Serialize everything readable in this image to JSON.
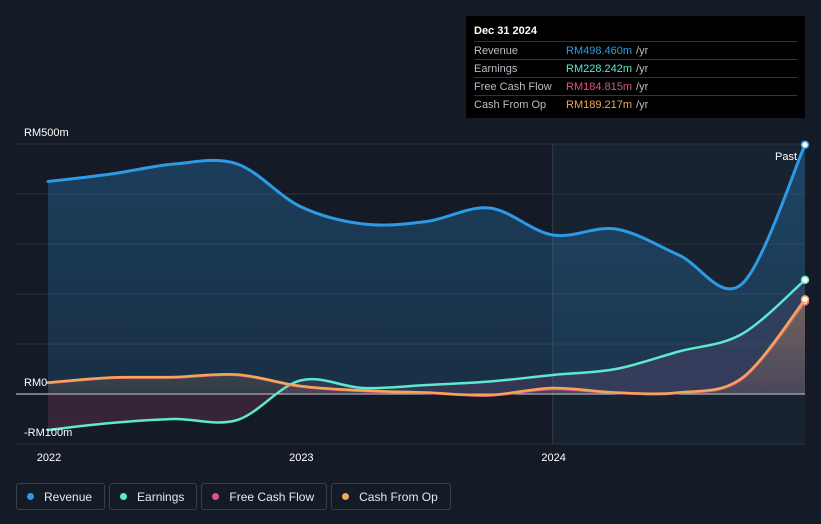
{
  "tooltip": {
    "date": "Dec 31 2024",
    "rows": [
      {
        "name": "Revenue",
        "value": "RM498.460m",
        "unit": "/yr",
        "color": "#2d9ae6"
      },
      {
        "name": "Earnings",
        "value": "RM228.242m",
        "unit": "/yr",
        "color": "#5ee8cf"
      },
      {
        "name": "Free Cash Flow",
        "value": "RM184.815m",
        "unit": "/yr",
        "color": "#e0508f"
      },
      {
        "name": "Cash From Op",
        "value": "RM189.217m",
        "unit": "/yr",
        "color": "#f1a65a"
      }
    ]
  },
  "legend": [
    {
      "label": "Revenue",
      "color": "#2d9ae6"
    },
    {
      "label": "Earnings",
      "color": "#5ee8cf"
    },
    {
      "label": "Free Cash Flow",
      "color": "#e0508f"
    },
    {
      "label": "Cash From Op",
      "color": "#f1a65a"
    }
  ],
  "chart_data": {
    "type": "area",
    "y_tick_labels": [
      {
        "value": 500,
        "label": "RM500m"
      },
      {
        "value": 0,
        "label": "RM0"
      },
      {
        "value": -100,
        "label": "-RM100m"
      }
    ],
    "x_tick_labels": [
      {
        "value": 2022.0,
        "label": "2022"
      },
      {
        "value": 2023.0,
        "label": "2023"
      },
      {
        "value": 2024.0,
        "label": "2024"
      }
    ],
    "ylim": [
      -100,
      500
    ],
    "xlim": [
      2021.87,
      2025.0
    ],
    "past_label": "Past",
    "past_start": 2024.0,
    "series": [
      {
        "name": "Revenue",
        "color": "#2d9ae6",
        "points": [
          [
            2022.0,
            425
          ],
          [
            2022.25,
            440
          ],
          [
            2022.5,
            460
          ],
          [
            2022.75,
            460
          ],
          [
            2023.0,
            375
          ],
          [
            2023.25,
            340
          ],
          [
            2023.5,
            345
          ],
          [
            2023.75,
            372
          ],
          [
            2024.0,
            318
          ],
          [
            2024.25,
            330
          ],
          [
            2024.5,
            278
          ],
          [
            2024.75,
            220
          ],
          [
            2025.0,
            498.46
          ]
        ]
      },
      {
        "name": "Earnings",
        "color": "#5ee8cf",
        "points": [
          [
            2022.0,
            -72
          ],
          [
            2022.25,
            -58
          ],
          [
            2022.5,
            -50
          ],
          [
            2022.75,
            -52
          ],
          [
            2023.0,
            27
          ],
          [
            2023.25,
            12
          ],
          [
            2023.5,
            18
          ],
          [
            2023.75,
            25
          ],
          [
            2024.0,
            38
          ],
          [
            2024.25,
            50
          ],
          [
            2024.5,
            85
          ],
          [
            2024.75,
            120
          ],
          [
            2025.0,
            228.242
          ]
        ]
      },
      {
        "name": "Free Cash Flow",
        "color": "#e0508f",
        "points": [
          [
            2022.0,
            22
          ],
          [
            2022.25,
            32
          ],
          [
            2022.5,
            33
          ],
          [
            2022.75,
            38
          ],
          [
            2023.0,
            15
          ],
          [
            2023.25,
            6
          ],
          [
            2023.5,
            2
          ],
          [
            2023.75,
            -3
          ],
          [
            2024.0,
            10
          ],
          [
            2024.25,
            2
          ],
          [
            2024.5,
            2
          ],
          [
            2024.75,
            30
          ],
          [
            2025.0,
            184.815
          ]
        ]
      },
      {
        "name": "Cash From Op",
        "color": "#f1a65a",
        "points": [
          [
            2022.0,
            23
          ],
          [
            2022.25,
            33
          ],
          [
            2022.5,
            34
          ],
          [
            2022.75,
            39
          ],
          [
            2023.0,
            16
          ],
          [
            2023.25,
            7
          ],
          [
            2023.5,
            3
          ],
          [
            2023.75,
            -2
          ],
          [
            2024.0,
            12
          ],
          [
            2024.25,
            3
          ],
          [
            2024.5,
            3
          ],
          [
            2024.75,
            32
          ],
          [
            2025.0,
            189.217
          ]
        ]
      }
    ]
  }
}
